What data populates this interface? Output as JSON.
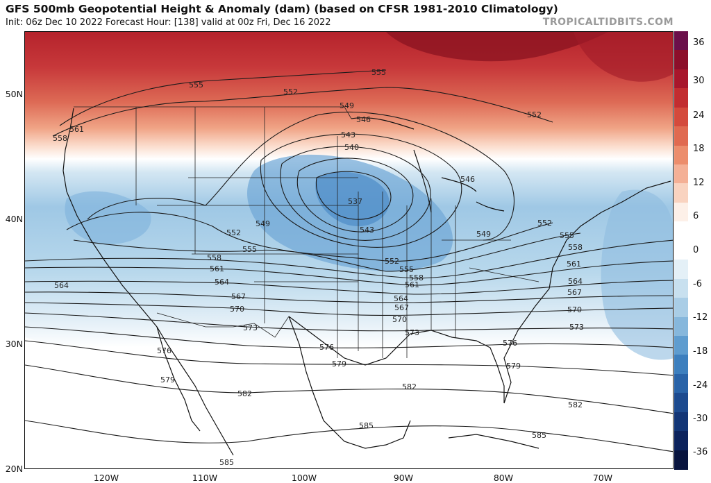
{
  "header": {
    "title": "GFS 500mb Geopotential Height & Anomaly (dam) (based on CFSR 1981-2010 Climatology)",
    "subtitle": "Init: 06z Dec 10 2022   Forecast Hour: [138]   valid at 00z Fri, Dec 16 2022",
    "credit": "TROPICALTIDBITS.COM"
  },
  "map": {
    "latitude_labels": [
      "50N",
      "40N",
      "30N",
      "20N"
    ],
    "longitude_labels": [
      "120W",
      "110W",
      "100W",
      "90W",
      "80W",
      "70W"
    ],
    "contours": [
      {
        "value": 537,
        "labels": [
          "537"
        ]
      },
      {
        "value": 540,
        "labels": [
          "540"
        ]
      },
      {
        "value": 543,
        "labels": [
          "543",
          "543"
        ]
      },
      {
        "value": 546,
        "labels": [
          "546",
          "546"
        ]
      },
      {
        "value": 549,
        "labels": [
          "549",
          "549",
          "549"
        ]
      },
      {
        "value": 552,
        "labels": [
          "552",
          "552",
          "552",
          "552",
          "552"
        ]
      },
      {
        "value": 555,
        "labels": [
          "555",
          "555",
          "555",
          "555",
          "555"
        ]
      },
      {
        "value": 558,
        "labels": [
          "558",
          "558",
          "558",
          "558"
        ]
      },
      {
        "value": 561,
        "labels": [
          "561",
          "561",
          "561",
          "561"
        ]
      },
      {
        "value": 564,
        "labels": [
          "564",
          "564",
          "564",
          "564"
        ]
      },
      {
        "value": 567,
        "labels": [
          "567",
          "567",
          "567"
        ]
      },
      {
        "value": 570,
        "labels": [
          "570",
          "570",
          "570"
        ]
      },
      {
        "value": 573,
        "labels": [
          "573",
          "573",
          "573"
        ]
      },
      {
        "value": 576,
        "labels": [
          "576",
          "576",
          "576"
        ]
      },
      {
        "value": 579,
        "labels": [
          "579",
          "579",
          "579"
        ]
      },
      {
        "value": 582,
        "labels": [
          "582",
          "582",
          "582"
        ]
      },
      {
        "value": 585,
        "labels": [
          "585",
          "585",
          "585"
        ]
      }
    ]
  },
  "colorbar": {
    "labels": [
      "36",
      "30",
      "24",
      "18",
      "12",
      "6",
      "0",
      "-6",
      "-12",
      "-18",
      "-24",
      "-30",
      "-36"
    ],
    "colors": [
      "#6b0f4a",
      "#8c0f2a",
      "#a8162b",
      "#c22d30",
      "#d44a3c",
      "#e06a50",
      "#ec8d6c",
      "#f4b096",
      "#f9d3c0",
      "#fdf0e8",
      "#ffffff",
      "#ffffff",
      "#e4f0f7",
      "#c8e0ef",
      "#a9cde6",
      "#86b7dc",
      "#5e9ccf",
      "#3d7fbe",
      "#2963a8",
      "#1c4a8f",
      "#123576",
      "#0b225c",
      "#08143e"
    ]
  }
}
